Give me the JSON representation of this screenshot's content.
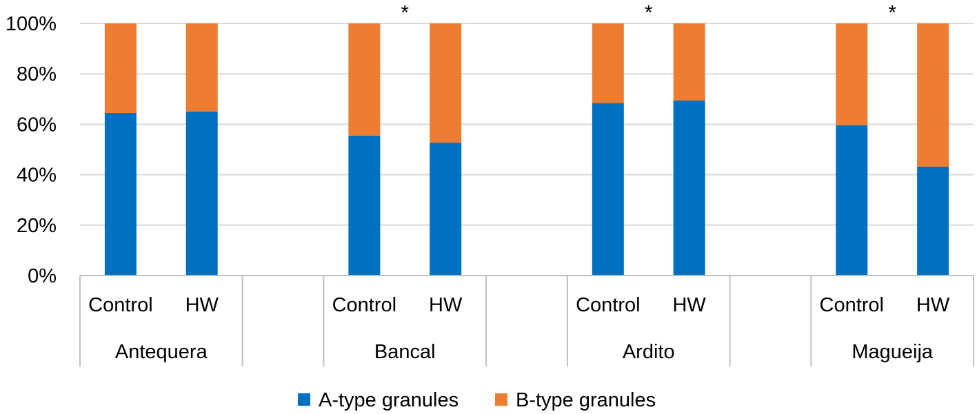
{
  "chart_data": {
    "type": "bar",
    "stacked": true,
    "percent": true,
    "title": "",
    "xlabel": "",
    "ylabel": "",
    "ylim": [
      0,
      100
    ],
    "yticks": [
      "0%",
      "20%",
      "40%",
      "60%",
      "80%",
      "100%"
    ],
    "groups": [
      {
        "name": "Antequera",
        "significant": false,
        "marker": "",
        "bars": [
          {
            "label": "Control",
            "a": 64.5
          },
          {
            "label": "HW",
            "a": 65
          }
        ]
      },
      {
        "name": "Bancal",
        "significant": true,
        "marker": "*",
        "bars": [
          {
            "label": "Control",
            "a": 55.5
          },
          {
            "label": "HW",
            "a": 52.7
          }
        ]
      },
      {
        "name": "Ardito",
        "significant": true,
        "marker": "*",
        "bars": [
          {
            "label": "Control",
            "a": 68.4
          },
          {
            "label": "HW",
            "a": 69.4
          }
        ]
      },
      {
        "name": "Magueija",
        "significant": true,
        "marker": "*",
        "bars": [
          {
            "label": "Control",
            "a": 59.6
          },
          {
            "label": "HW",
            "a": 43.2
          }
        ]
      }
    ],
    "series": [
      {
        "name": "A-type granules",
        "color": "#0070C0"
      },
      {
        "name": "B-type granules",
        "color": "#ED7D31"
      }
    ],
    "legend_position": "bottom",
    "grid": true
  }
}
